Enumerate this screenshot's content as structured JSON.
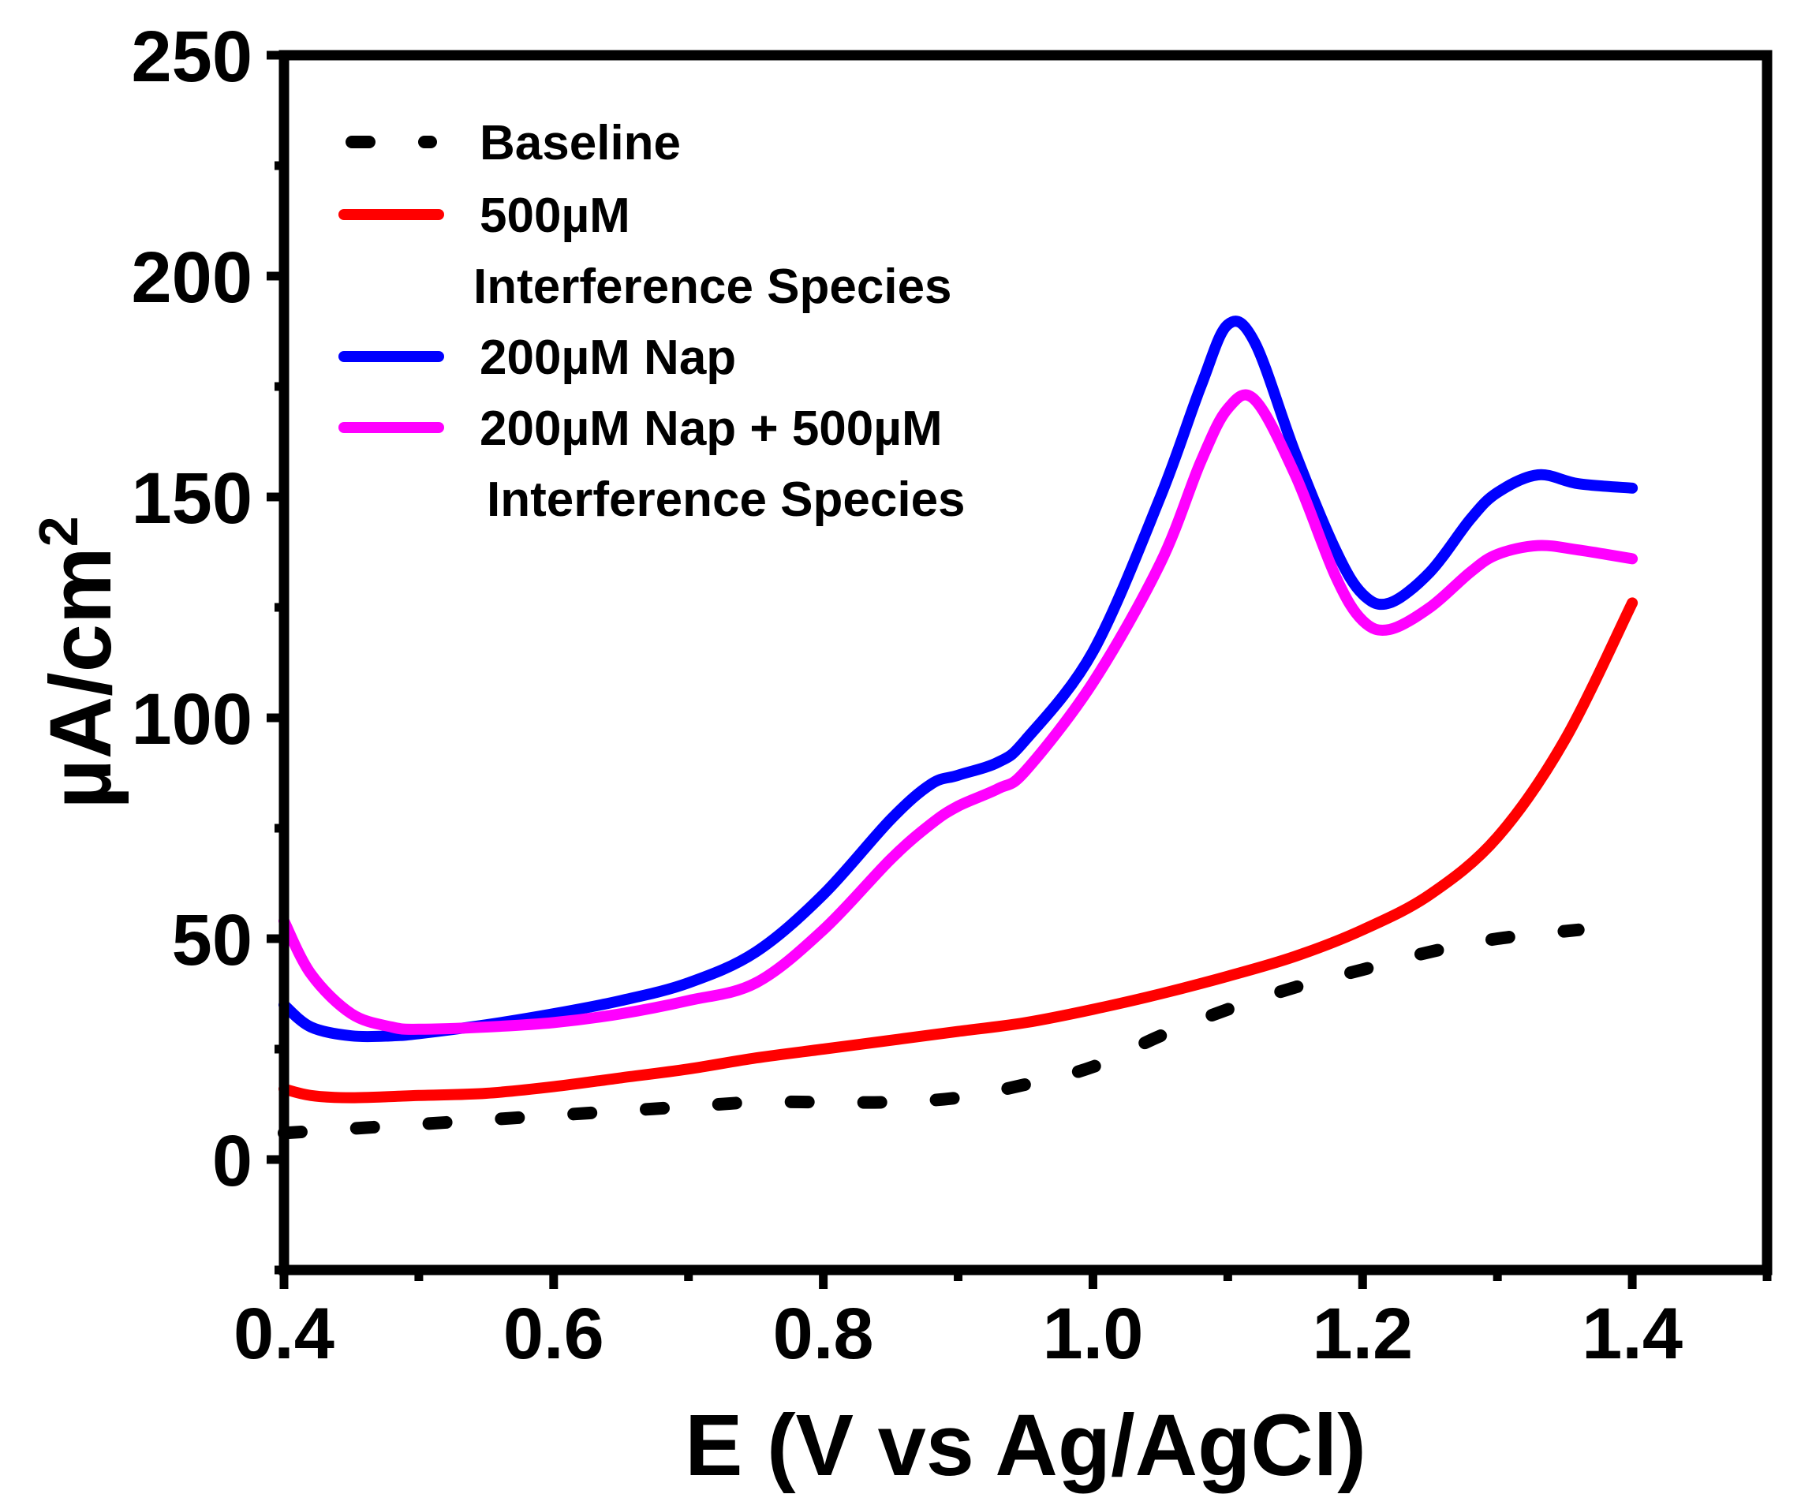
{
  "chart_data": {
    "type": "line",
    "title": "",
    "xlabel": "E (V vs Ag/AgCl)",
    "ylabel": "µA/cm",
    "ylabel_superscript": "2",
    "xlim": [
      0.4,
      1.5
    ],
    "ylim": [
      -25,
      250
    ],
    "x_ticks": [
      0.4,
      0.6,
      0.8,
      1.0,
      1.2,
      1.4
    ],
    "x_tick_labels": [
      "0.4",
      "0.6",
      "0.8",
      "1.0",
      "1.2",
      "1.4"
    ],
    "y_ticks": [
      0,
      50,
      100,
      150,
      200,
      250
    ],
    "y_tick_labels": [
      "0",
      "50",
      "100",
      "150",
      "200",
      "250"
    ],
    "grid": false,
    "legend_position": "top-left",
    "series": [
      {
        "name": "Baseline",
        "legend_lines": [
          "Baseline"
        ],
        "color": "#000000",
        "style": "dotted",
        "x": [
          0.4,
          0.45,
          0.5,
          0.55,
          0.6,
          0.65,
          0.7,
          0.75,
          0.8,
          0.85,
          0.9,
          0.95,
          1.0,
          1.05,
          1.1,
          1.15,
          1.2,
          1.25,
          1.3,
          1.36
        ],
        "values": [
          6,
          7,
          8,
          9,
          10,
          11,
          12,
          13,
          13,
          13,
          14,
          17,
          21,
          28,
          34,
          39,
          43,
          47,
          50,
          52
        ]
      },
      {
        "name": "500µM Interference Species",
        "legend_lines": [
          "500µM",
          "Interference Species"
        ],
        "color": "#ff0000",
        "style": "solid",
        "x": [
          0.4,
          0.42,
          0.45,
          0.5,
          0.55,
          0.6,
          0.65,
          0.7,
          0.75,
          0.8,
          0.85,
          0.9,
          0.95,
          1.0,
          1.05,
          1.1,
          1.15,
          1.2,
          1.25,
          1.3,
          1.35,
          1.4
        ],
        "values": [
          16,
          14.5,
          14,
          14.5,
          15,
          16.5,
          18.5,
          20.5,
          23,
          25,
          27,
          29,
          31,
          34,
          37.5,
          41.5,
          46,
          52,
          60,
          73,
          95,
          126
        ]
      },
      {
        "name": "200µM Nap",
        "legend_lines": [
          "200µM Nap"
        ],
        "color": "#0000ff",
        "style": "solid",
        "x": [
          0.4,
          0.42,
          0.45,
          0.48,
          0.5,
          0.55,
          0.6,
          0.65,
          0.7,
          0.75,
          0.8,
          0.85,
          0.88,
          0.9,
          0.93,
          0.95,
          1.0,
          1.05,
          1.08,
          1.1,
          1.12,
          1.15,
          1.18,
          1.2,
          1.22,
          1.25,
          1.28,
          1.3,
          1.33,
          1.36,
          1.4
        ],
        "values": [
          35,
          30,
          28,
          28,
          28.5,
          30.5,
          33,
          36,
          40,
          47,
          60,
          77,
          85,
          87,
          90,
          95,
          115,
          150,
          175,
          189,
          185,
          160,
          138,
          128,
          126,
          133,
          145,
          151,
          155,
          153,
          152
        ]
      },
      {
        "name": "200µM Nap + 500µM Interference Species",
        "legend_lines": [
          "200µM Nap + 500µM",
          " Interference Species"
        ],
        "color": "#ff00ff",
        "style": "solid",
        "x": [
          0.4,
          0.42,
          0.45,
          0.48,
          0.5,
          0.55,
          0.6,
          0.65,
          0.7,
          0.75,
          0.8,
          0.85,
          0.88,
          0.9,
          0.93,
          0.95,
          1.0,
          1.05,
          1.08,
          1.1,
          1.12,
          1.15,
          1.18,
          1.2,
          1.22,
          1.25,
          1.28,
          1.3,
          1.33,
          1.36,
          1.4
        ],
        "values": [
          54,
          42,
          33,
          30,
          29.5,
          30,
          31,
          33,
          36,
          40,
          52,
          68,
          76,
          80,
          84,
          88,
          108,
          135,
          158,
          170,
          172,
          155,
          132,
          122,
          120,
          125,
          133,
          137,
          139,
          138,
          136
        ]
      }
    ]
  }
}
